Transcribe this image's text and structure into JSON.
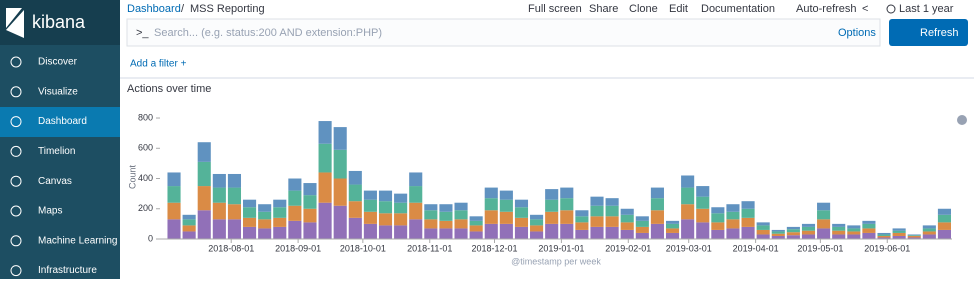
{
  "nav": {
    "logo": "kibana",
    "items": [
      "Discover",
      "Visualize",
      "Dashboard",
      "Timelion",
      "Canvas",
      "Maps",
      "Machine Learning",
      "Infrastructure"
    ]
  },
  "header": {
    "breadcrumb_root": "Dashboard",
    "breadcrumb_current": "MSS Reporting",
    "menu": [
      "Full screen",
      "Share",
      "Clone",
      "Edit",
      "Documentation",
      "Auto-refresh"
    ],
    "time_range": "Last 1 year"
  },
  "search": {
    "prompt": ">_",
    "placeholder": "Search... (e.g. status:200 AND extension:PHP)",
    "options": "Options",
    "refresh": "Refresh"
  },
  "filters": {
    "add": "Add a filter +"
  },
  "panel": {
    "title": "Actions over time"
  },
  "chart_data": {
    "type": "stacked_bar",
    "xlabel": "@timestamp per week",
    "ylabel": "Count",
    "grid": false,
    "x": [
      "2018-07-02",
      "2018-07-09",
      "2018-07-16",
      "2018-07-23",
      "2018-07-30",
      "2018-08-06",
      "2018-08-13",
      "2018-08-20",
      "2018-08-27",
      "2018-09-03",
      "2018-09-10",
      "2018-09-17",
      "2018-09-24",
      "2018-10-01",
      "2018-10-08",
      "2018-10-15",
      "2018-10-22",
      "2018-10-29",
      "2018-11-05",
      "2018-11-12",
      "2018-11-19",
      "2018-11-26",
      "2018-12-03",
      "2018-12-10",
      "2018-12-17",
      "2018-12-24",
      "2018-12-31",
      "2019-01-07",
      "2019-01-14",
      "2019-01-21",
      "2019-01-28",
      "2019-02-04",
      "2019-02-11",
      "2019-02-18",
      "2019-02-25",
      "2019-03-04",
      "2019-03-11",
      "2019-03-18",
      "2019-03-25",
      "2019-04-01",
      "2019-04-08",
      "2019-04-15",
      "2019-04-22",
      "2019-04-29",
      "2019-05-06",
      "2019-05-13",
      "2019-05-20",
      "2019-05-27",
      "2019-06-03",
      "2019-06-10",
      "2019-06-17",
      "2019-06-24"
    ],
    "xlim": [
      "2018-06-29",
      "2019-07-01"
    ],
    "xticks": [
      "2018-08-01",
      "2018-09-01",
      "2018-10-01",
      "2018-11-01",
      "2018-12-01",
      "2019-01-01",
      "2019-02-01",
      "2019-03-01",
      "2019-04-01",
      "2019-05-01",
      "2019-06-01"
    ],
    "ylim": [
      0,
      820
    ],
    "yticks": [
      0,
      200,
      400,
      600,
      800
    ],
    "series": [
      {
        "color": "#9170B8",
        "values": [
          130,
          50,
          190,
          130,
          130,
          80,
          70,
          80,
          120,
          110,
          240,
          220,
          140,
          100,
          90,
          90,
          130,
          70,
          70,
          70,
          50,
          100,
          100,
          80,
          50,
          100,
          100,
          60,
          80,
          80,
          60,
          40,
          100,
          40,
          130,
          110,
          60,
          70,
          80,
          30,
          20,
          25,
          30,
          70,
          30,
          30,
          40,
          10,
          20,
          10,
          30,
          60
        ]
      },
      {
        "color": "#DA8B45",
        "values": [
          110,
          40,
          160,
          110,
          100,
          60,
          60,
          60,
          100,
          90,
          200,
          180,
          110,
          80,
          80,
          80,
          110,
          60,
          50,
          60,
          40,
          90,
          80,
          60,
          40,
          80,
          90,
          50,
          70,
          70,
          50,
          40,
          90,
          30,
          100,
          90,
          50,
          60,
          60,
          30,
          15,
          20,
          25,
          60,
          25,
          20,
          30,
          10,
          20,
          10,
          20,
          50
        ]
      },
      {
        "color": "#54B399",
        "values": [
          110,
          40,
          160,
          100,
          110,
          70,
          50,
          70,
          100,
          90,
          190,
          190,
          110,
          80,
          80,
          70,
          110,
          60,
          60,
          60,
          30,
          80,
          80,
          70,
          40,
          80,
          80,
          40,
          70,
          70,
          50,
          40,
          80,
          30,
          110,
          80,
          60,
          50,
          60,
          30,
          15,
          20,
          25,
          60,
          25,
          20,
          30,
          10,
          15,
          5,
          20,
          50
        ]
      },
      {
        "color": "#6092C0",
        "values": [
          90,
          30,
          130,
          90,
          90,
          50,
          50,
          50,
          80,
          80,
          150,
          150,
          90,
          60,
          70,
          60,
          90,
          40,
          50,
          50,
          30,
          70,
          60,
          50,
          30,
          70,
          70,
          40,
          60,
          50,
          40,
          30,
          70,
          20,
          80,
          70,
          40,
          50,
          50,
          20,
          10,
          15,
          20,
          50,
          20,
          20,
          20,
          10,
          15,
          5,
          20,
          40
        ]
      }
    ]
  }
}
